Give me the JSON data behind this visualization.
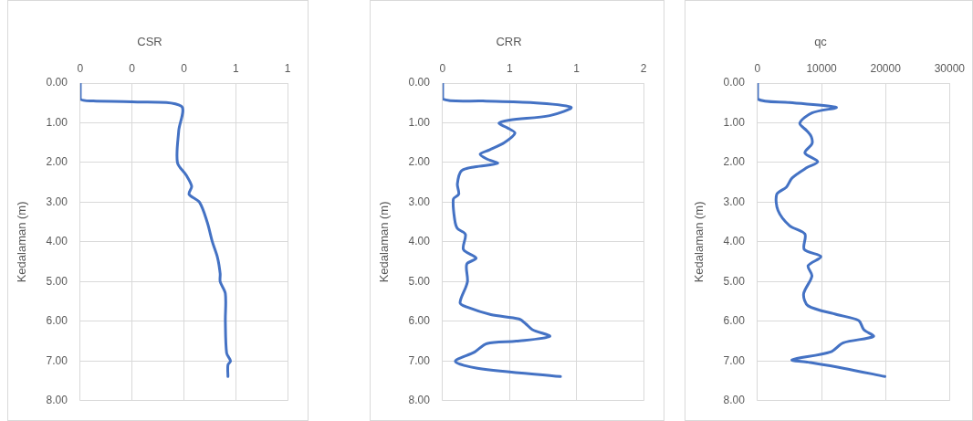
{
  "chart_data": [
    {
      "type": "line",
      "title": "CSR",
      "ylabel": "Kedalaman (m)",
      "grid": true,
      "legend": false,
      "marker": "none",
      "line_style": "solid",
      "xlim": [
        0,
        0.8
      ],
      "xticks": [
        0,
        {
          "value": 0.2,
          "label": "0"
        },
        {
          "value": 0.4,
          "label": "0"
        },
        {
          "value": 0.6,
          "label": "1"
        },
        {
          "value": 0.8,
          "label": "1"
        }
      ],
      "ylim": [
        8,
        0
      ],
      "yticks": [
        {
          "value": 0,
          "label": "0.00"
        },
        {
          "value": 1,
          "label": "1.00"
        },
        {
          "value": 2,
          "label": "2.00"
        },
        {
          "value": 3,
          "label": "3.00"
        },
        {
          "value": 4,
          "label": "4.00"
        },
        {
          "value": 5,
          "label": "5.00"
        },
        {
          "value": 6,
          "label": "6.00"
        },
        {
          "value": 7,
          "label": "7.00"
        },
        {
          "value": 8,
          "label": "8.00"
        }
      ],
      "series": [
        {
          "color": "#4472c4",
          "x": [
            0,
            0,
            0.05,
            0.2,
            0.39,
            0.38,
            0.375,
            0.41,
            0.43,
            0.42,
            0.46,
            0.49,
            0.51,
            0.53,
            0.54,
            0.54,
            0.56,
            0.56,
            0.565,
            0.58,
            0.57,
            0.57
          ],
          "values": [
            0,
            0.4,
            0.45,
            0.47,
            0.58,
            1.2,
            2.0,
            2.33,
            2.6,
            2.8,
            3.0,
            3.5,
            4.0,
            4.4,
            4.8,
            5.0,
            5.3,
            6.0,
            6.8,
            7.0,
            7.1,
            7.39
          ]
        }
      ]
    },
    {
      "type": "line",
      "title": "CRR",
      "ylabel": "Kedalaman (m)",
      "grid": true,
      "legend": false,
      "marker": "none",
      "line_style": "solid",
      "xlim": [
        0,
        1.5
      ],
      "xticks": [
        0,
        {
          "value": 0.5,
          "label": "1"
        },
        {
          "value": 1,
          "label": "1"
        },
        {
          "value": 1.5,
          "label": "2"
        }
      ],
      "ylim": [
        8,
        0
      ],
      "yticks": [
        {
          "value": 0,
          "label": "0.00"
        },
        {
          "value": 1,
          "label": "1.00"
        },
        {
          "value": 2,
          "label": "2.00"
        },
        {
          "value": 3,
          "label": "3.00"
        },
        {
          "value": 4,
          "label": "4.00"
        },
        {
          "value": 5,
          "label": "5.00"
        },
        {
          "value": 6,
          "label": "6.00"
        },
        {
          "value": 7,
          "label": "7.00"
        },
        {
          "value": 8,
          "label": "8.00"
        }
      ],
      "series": [
        {
          "color": "#4472c4",
          "x": [
            0,
            0,
            0.3,
            0.7,
            0.96,
            0.8,
            0.5,
            0.42,
            0.48,
            0.54,
            0.46,
            0.35,
            0.28,
            0.33,
            0.41,
            0.24,
            0.14,
            0.11,
            0.12,
            0.08,
            0.09,
            0.11,
            0.17,
            0.155,
            0.25,
            0.18,
            0.185,
            0.13,
            0.18,
            0.36,
            0.57,
            0.62,
            0.67,
            0.8,
            0.55,
            0.33,
            0.24,
            0.095,
            0.26,
            0.88
          ],
          "values": [
            0,
            0.4,
            0.45,
            0.5,
            0.61,
            0.82,
            0.93,
            1.01,
            1.12,
            1.26,
            1.5,
            1.68,
            1.79,
            1.91,
            2.02,
            2.11,
            2.21,
            2.54,
            2.8,
            2.92,
            3.44,
            3.66,
            3.81,
            4.19,
            4.41,
            4.56,
            5.01,
            5.53,
            5.64,
            5.83,
            5.94,
            6.06,
            6.21,
            6.38,
            6.5,
            6.56,
            6.77,
            7.01,
            7.18,
            7.39
          ]
        }
      ]
    },
    {
      "type": "line",
      "title": "qc",
      "ylabel": "Kedalaman (m)",
      "grid": true,
      "legend": false,
      "marker": "none",
      "line_style": "solid",
      "xlim": [
        0,
        30000
      ],
      "xticks": [
        0,
        10000,
        20000,
        30000
      ],
      "ylim": [
        8,
        0
      ],
      "yticks": [
        {
          "value": 0,
          "label": "0.00"
        },
        {
          "value": 1,
          "label": "1.00"
        },
        {
          "value": 2,
          "label": "2.00"
        },
        {
          "value": 3,
          "label": "3.00"
        },
        {
          "value": 4,
          "label": "4.00"
        },
        {
          "value": 5,
          "label": "5.00"
        },
        {
          "value": 6,
          "label": "6.00"
        },
        {
          "value": 7,
          "label": "7.00"
        },
        {
          "value": 8,
          "label": "8.00"
        }
      ],
      "series": [
        {
          "color": "#4472c4",
          "x": [
            0,
            0,
            5000,
            12300,
            8500,
            6600,
            7700,
            8400,
            8500,
            7400,
            9400,
            7700,
            5400,
            4500,
            3000,
            3200,
            5000,
            7400,
            7300,
            9900,
            7900,
            8500,
            7200,
            7900,
            12400,
            15800,
            16600,
            18100,
            13400,
            11400,
            5400,
            7900,
            13400,
            19900
          ],
          "values": [
            0,
            0.4,
            0.49,
            0.61,
            0.75,
            1.01,
            1.2,
            1.35,
            1.53,
            1.76,
            1.98,
            2.13,
            2.39,
            2.62,
            2.8,
            3.21,
            3.59,
            3.8,
            4.19,
            4.37,
            4.6,
            4.86,
            5.31,
            5.61,
            5.83,
            5.98,
            6.21,
            6.38,
            6.54,
            6.77,
            6.97,
            7.03,
            7.18,
            7.39
          ]
        }
      ]
    }
  ]
}
